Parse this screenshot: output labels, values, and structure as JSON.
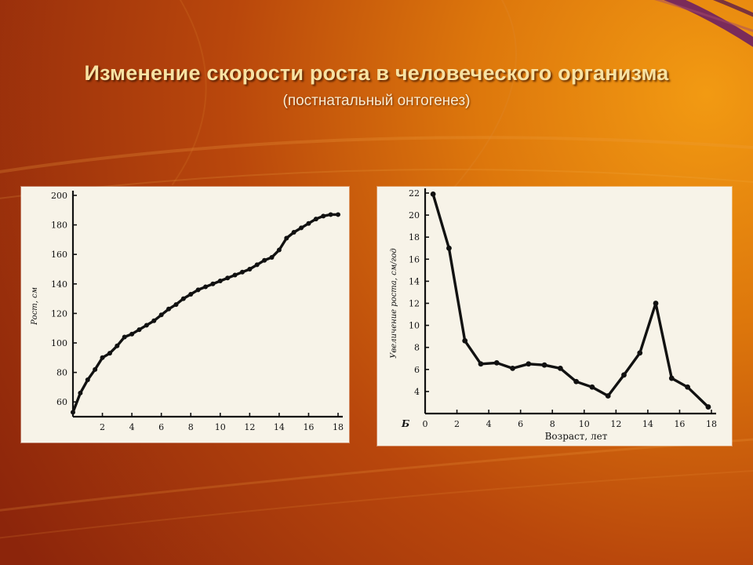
{
  "slide": {
    "title": "Изменение скорости роста в человеческого организма",
    "subtitle": "(постнатальный онтогенез)",
    "colors": {
      "background_dark": "#8E2A0B",
      "background_light": "#E9870F",
      "title": "#F7E2A3",
      "panel": "#F7F3E8",
      "ink": "#111111"
    }
  },
  "chart_data": [
    {
      "type": "line",
      "title": "",
      "xlabel": "",
      "ylabel": "Рост, см",
      "xlim": [
        0,
        18
      ],
      "ylim": [
        50,
        200
      ],
      "x_ticks": [
        2,
        4,
        6,
        8,
        10,
        12,
        14,
        16,
        18
      ],
      "y_ticks": [
        60,
        80,
        100,
        120,
        140,
        160,
        180,
        200
      ],
      "grid": false,
      "x": [
        0,
        0.5,
        1,
        1.5,
        2,
        2.5,
        3,
        3.5,
        4,
        4.5,
        5,
        5.5,
        6,
        6.5,
        7,
        7.5,
        8,
        8.5,
        9,
        9.5,
        10,
        10.5,
        11,
        11.5,
        12,
        12.5,
        13,
        13.5,
        14,
        14.5,
        15,
        15.5,
        16,
        16.5,
        17,
        17.5,
        18
      ],
      "values": [
        53,
        66,
        75,
        82,
        90,
        93,
        98,
        104,
        106,
        109,
        112,
        115,
        119,
        123,
        126,
        130,
        133,
        136,
        138,
        140,
        142,
        144,
        146,
        148,
        150,
        153,
        156,
        158,
        163,
        171,
        175,
        178,
        181,
        184,
        186,
        187,
        187
      ]
    },
    {
      "type": "line",
      "title": "",
      "panel_label": "Б",
      "xlabel": "Возраст, лет",
      "ylabel": "Увеличение роста, см/год",
      "xlim": [
        0,
        18
      ],
      "ylim": [
        2,
        22
      ],
      "x_ticks": [
        0,
        2,
        4,
        6,
        8,
        10,
        12,
        14,
        16,
        18
      ],
      "y_ticks": [
        4,
        6,
        8,
        10,
        12,
        14,
        16,
        18,
        20,
        22
      ],
      "grid": false,
      "x": [
        0.5,
        1.5,
        2.5,
        3.5,
        4.5,
        5.5,
        6.5,
        7.5,
        8.5,
        9.5,
        10.5,
        11.5,
        12.5,
        13.5,
        14.5,
        15.5,
        16.5,
        17.8
      ],
      "values": [
        21.9,
        17,
        8.6,
        6.5,
        6.6,
        6.1,
        6.5,
        6.4,
        6.1,
        4.9,
        4.4,
        3.6,
        5.5,
        7.5,
        12,
        5.2,
        4.4,
        2.6
      ]
    }
  ]
}
